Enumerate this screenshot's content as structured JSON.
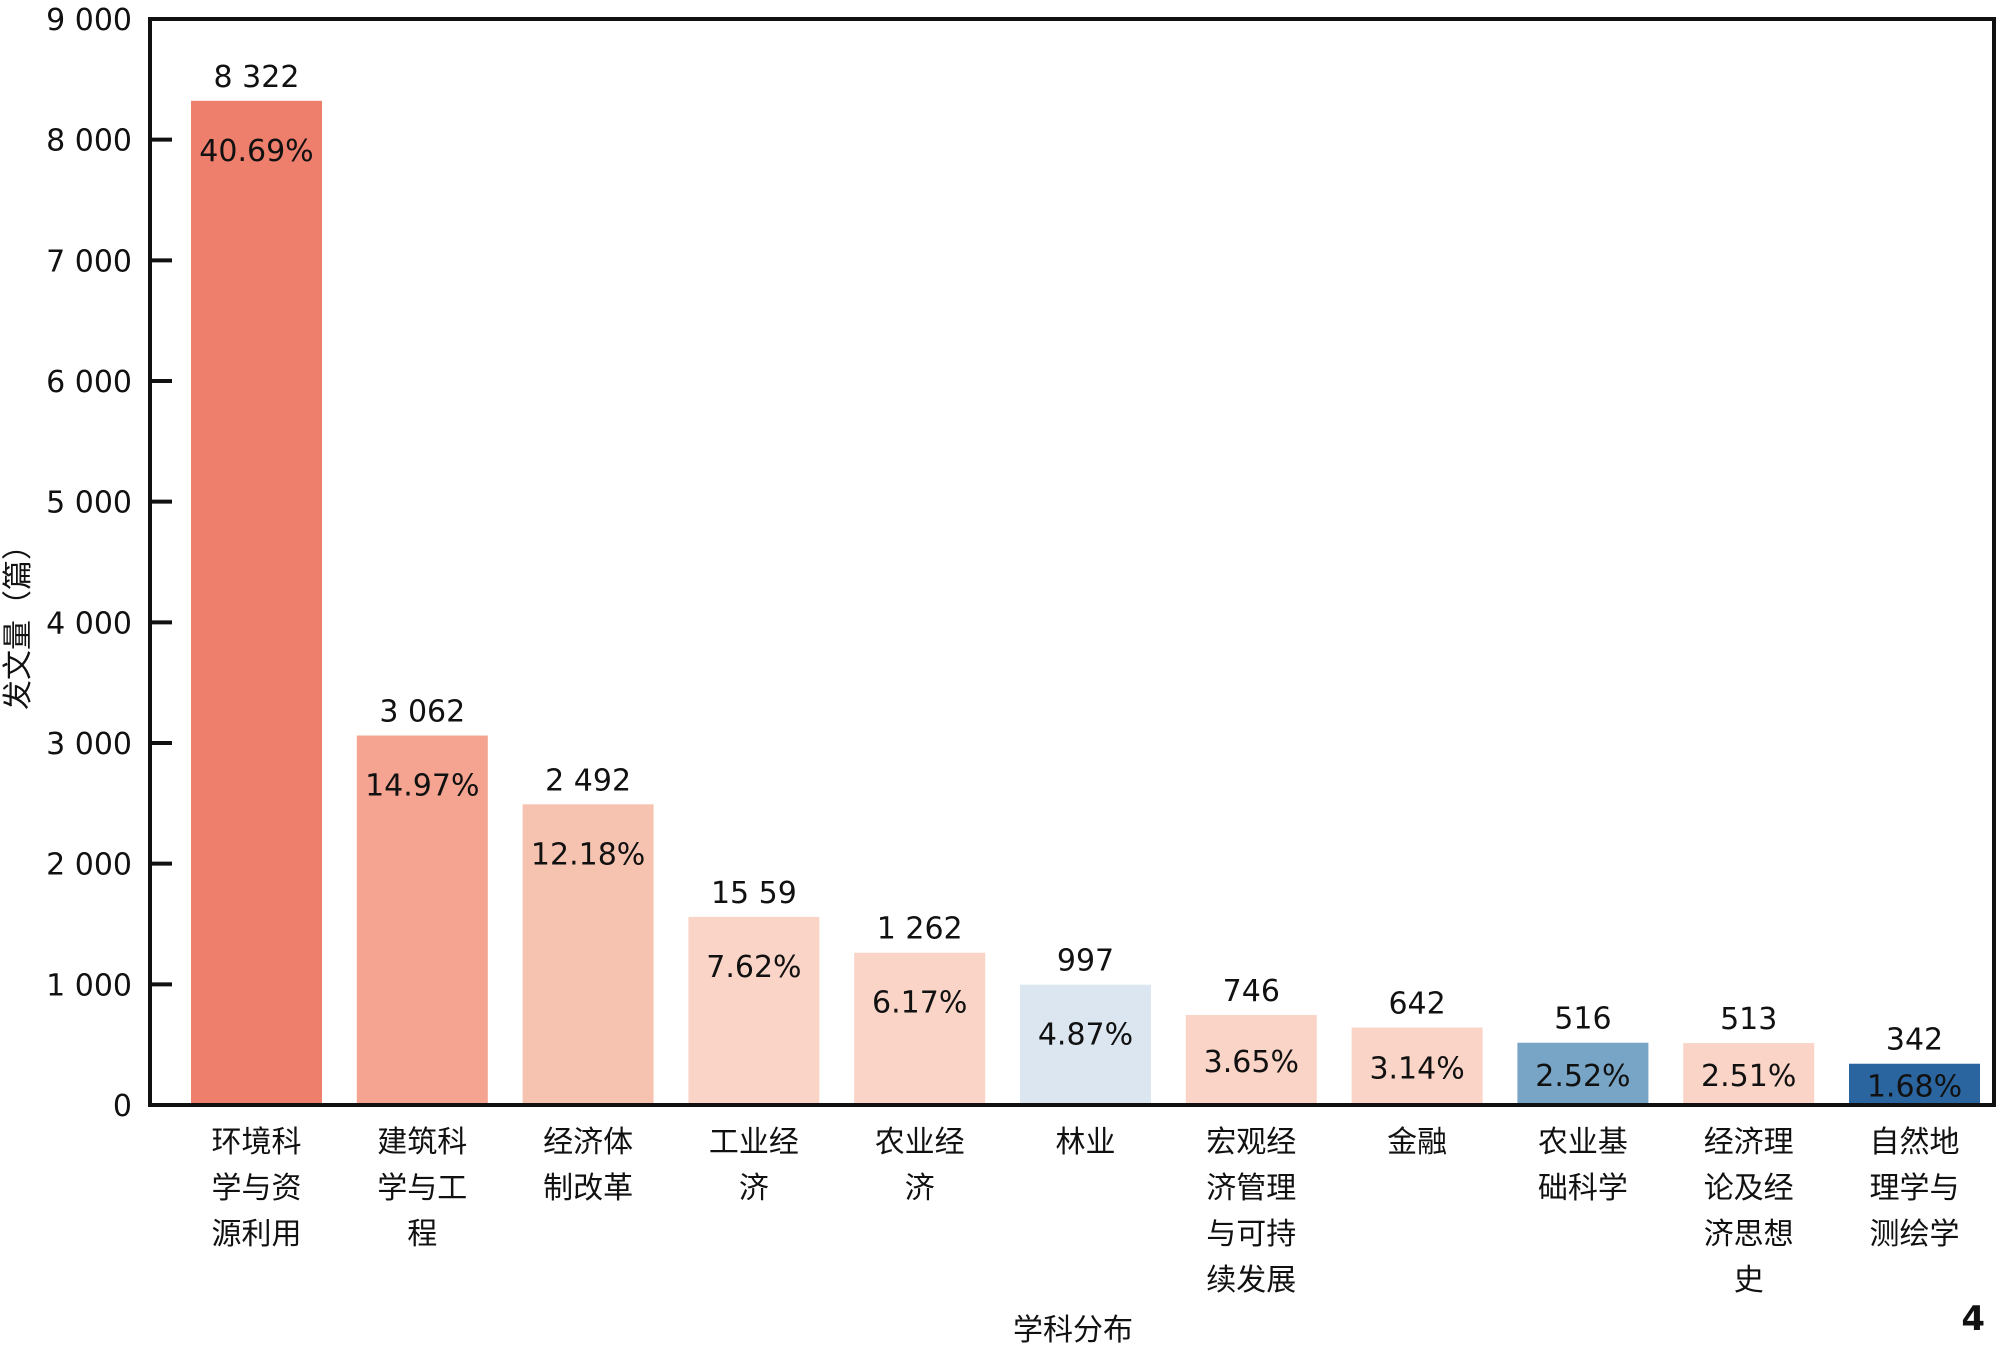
{
  "chart_data": {
    "type": "bar",
    "title": "",
    "xlabel": "学科分布",
    "ylabel": "发文量（篇）",
    "ylim": [
      0,
      9000
    ],
    "yticks": [
      0,
      1000,
      2000,
      3000,
      4000,
      5000,
      6000,
      7000,
      8000,
      9000
    ],
    "ytick_labels": [
      "0",
      "1 000",
      "2 000",
      "3 000",
      "4 000",
      "5 000",
      "6 000",
      "7 000",
      "8 000",
      "9 000"
    ],
    "grid": false,
    "categories": [
      "环境科学与资源利用",
      "建筑科学与工程",
      "经济体制改革",
      "工业经济",
      "农业经济",
      "林业",
      "宏观经济管理与可持续发展",
      "金融",
      "农业基础科学",
      "经济理论及经济思想史",
      "自然地理学与测绘学"
    ],
    "values": [
      8322,
      3062,
      2492,
      1559,
      1262,
      997,
      746,
      642,
      516,
      513,
      342
    ],
    "value_labels": [
      "8 322",
      "3 062",
      "2 492",
      "15 59",
      "1 262",
      "997",
      "746",
      "642",
      "516",
      "513",
      "342"
    ],
    "percent_labels": [
      "40.69%",
      "14.97%",
      "12.18%",
      "7.62%",
      "6.17%",
      "4.87%",
      "3.65%",
      "3.14%",
      "2.52%",
      "2.51%",
      "1.68%"
    ],
    "colors": [
      "#ee7f6d",
      "#f4a490",
      "#f7c3b1",
      "#f9d4c7",
      "#f9d4c7",
      "#dce6f0",
      "#f9d4c7",
      "#f9d4c7",
      "#78a5c6",
      "#f9d4c7",
      "#2b65a0"
    ],
    "percent_text_colors": [
      "#111111",
      "#111111",
      "#111111",
      "#111111",
      "#111111",
      "#111111",
      "#111111",
      "#111111",
      "#111111",
      "#111111",
      "#111111"
    ]
  },
  "page_number": "4"
}
